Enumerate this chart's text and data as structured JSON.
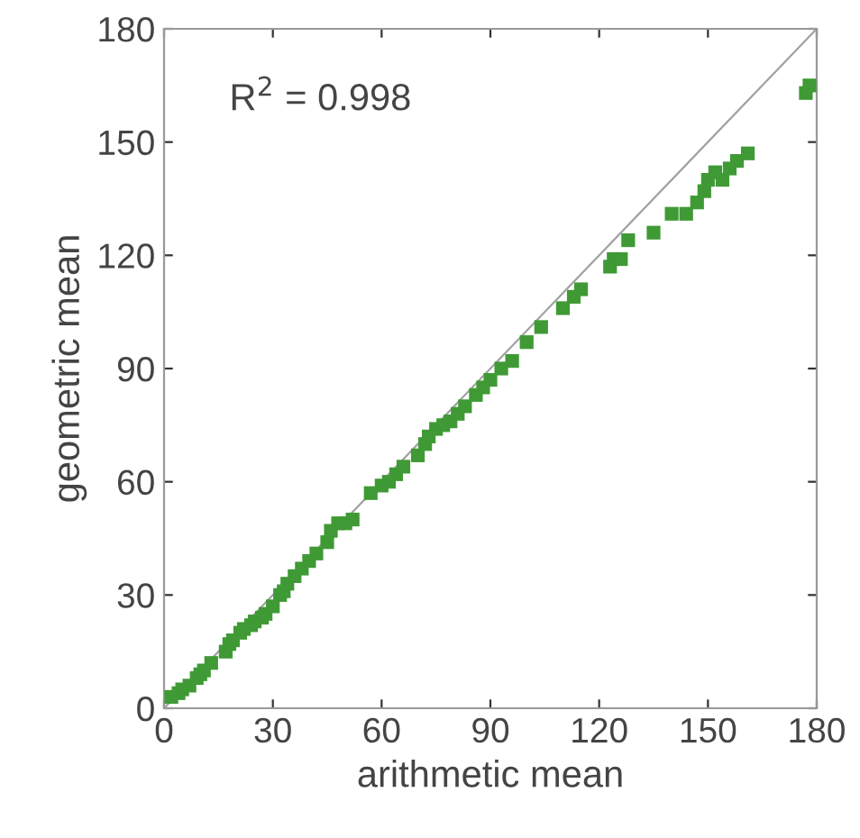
{
  "chart_data": {
    "type": "scatter",
    "xlabel": "arithmetic mean",
    "ylabel": "geometric mean",
    "annotations": [
      "R$^{2}$ = 0.998"
    ],
    "xlim": [
      0,
      180
    ],
    "ylim": [
      0,
      180
    ],
    "xticks": [
      0,
      30,
      60,
      90,
      120,
      150,
      180
    ],
    "yticks": [
      0,
      30,
      60,
      90,
      120,
      150,
      180
    ],
    "grid": false,
    "series": [
      {
        "marker": "square",
        "color": "#3f9a35",
        "x": [
          2,
          4,
          5,
          7,
          9,
          10,
          11,
          13,
          17,
          18,
          19,
          21,
          22,
          24,
          25,
          27,
          28,
          30,
          32,
          33,
          34,
          36,
          38,
          40,
          42,
          45,
          46,
          48,
          50,
          52,
          57,
          60,
          62,
          64,
          66,
          70,
          72,
          73,
          75,
          77,
          79,
          81,
          83,
          86,
          88,
          90,
          93,
          96,
          100,
          104,
          110,
          113,
          115,
          123,
          124,
          126,
          128,
          135,
          140,
          144,
          147,
          149,
          150,
          152,
          154,
          156,
          158,
          161,
          177,
          178
        ],
        "values": [
          3,
          4,
          5,
          6,
          8,
          9,
          10,
          12,
          15,
          17,
          18,
          20,
          21,
          22,
          23,
          24,
          25,
          27,
          30,
          31,
          33,
          35,
          37,
          39,
          41,
          44,
          47,
          49,
          49,
          50,
          57,
          59,
          60,
          62,
          64,
          67,
          70,
          72,
          74,
          75,
          76,
          78,
          80,
          83,
          85,
          87,
          90,
          92,
          97,
          101,
          106,
          109,
          111,
          117,
          119,
          119,
          124,
          126,
          131,
          131,
          134,
          137,
          140,
          142,
          140,
          143,
          145,
          147,
          163,
          165
        ]
      },
      {
        "type": "line",
        "marker": "none",
        "color": "#a0a0a0",
        "x": [
          0,
          180
        ],
        "values": [
          0,
          180
        ]
      }
    ]
  }
}
